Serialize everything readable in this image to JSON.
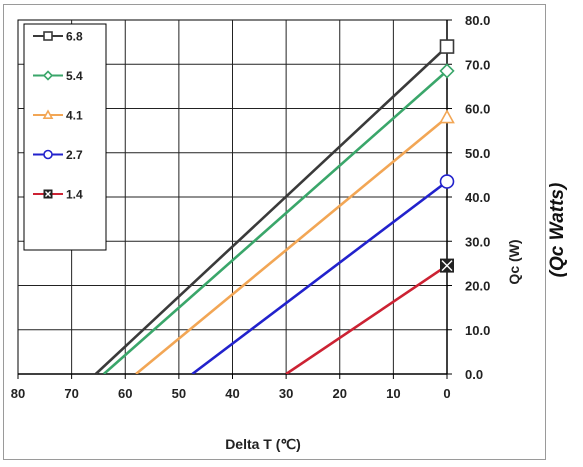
{
  "chart_data": {
    "type": "line",
    "xlabel": "Delta T (℃)",
    "ylabel": "Qc (W)",
    "side_label": "(Qc Watts)",
    "x_reversed": true,
    "xlim": [
      0,
      80
    ],
    "ylim": [
      0,
      80
    ],
    "x_ticks": [
      "80",
      "70",
      "60",
      "50",
      "40",
      "30",
      "20",
      "10",
      "0"
    ],
    "y_ticks": [
      "0.0",
      "10.0",
      "20.0",
      "30.0",
      "40.0",
      "50.0",
      "60.0",
      "70.0",
      "80.0"
    ],
    "grid": true,
    "legend_position": "top-left",
    "series": [
      {
        "name": "6.8",
        "color": "#3a3a3a",
        "marker": "square",
        "points": [
          [
            0,
            74
          ],
          [
            65.5,
            0
          ]
        ]
      },
      {
        "name": "5.4",
        "color": "#3aa66a",
        "marker": "diamond",
        "points": [
          [
            0,
            68.5
          ],
          [
            64,
            0
          ]
        ]
      },
      {
        "name": "4.1",
        "color": "#f2a655",
        "marker": "triangle",
        "points": [
          [
            0,
            58
          ],
          [
            58,
            0
          ]
        ]
      },
      {
        "name": "2.7",
        "color": "#2222cc",
        "marker": "circle",
        "points": [
          [
            0,
            43.5
          ],
          [
            47.5,
            0
          ]
        ]
      },
      {
        "name": "1.4",
        "color": "#cc2233",
        "marker": "square-x",
        "points": [
          [
            0,
            24.5
          ],
          [
            30,
            0
          ]
        ]
      }
    ]
  }
}
